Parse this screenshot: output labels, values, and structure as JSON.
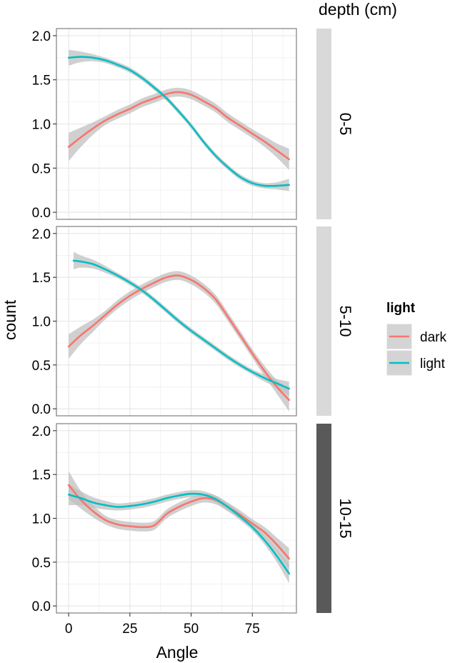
{
  "chart_data": {
    "type": "line",
    "xlabel": "Angle",
    "ylabel": "count",
    "xlim": [
      -5,
      93
    ],
    "ylim": [
      -0.08,
      2.08
    ],
    "x_ticks": [
      0,
      25,
      50,
      75
    ],
    "x_tick_labels": [
      "0",
      "25",
      "50",
      "75"
    ],
    "y_ticks": [
      0.0,
      0.5,
      1.0,
      1.5,
      2.0
    ],
    "y_tick_labels": [
      "0.0",
      "0.5",
      "1.0",
      "1.5",
      "2.0"
    ],
    "grid": true,
    "legend": {
      "title": "light",
      "position": "right",
      "entries": [
        {
          "label": "dark",
          "color": "#F8766D"
        },
        {
          "label": "light",
          "color": "#00BFC4"
        }
      ]
    },
    "facet_title": "depth (cm)",
    "facet_strip_colors": [
      "#d9d9d9",
      "#d9d9d9",
      "#595959"
    ],
    "band_color": "#c0c0c0",
    "panels": [
      {
        "strip": "0-5",
        "series": [
          {
            "name": "dark",
            "color": "#F8766D",
            "x": [
              0,
              5,
              10,
              15,
              20,
              25,
              30,
              35,
              40,
              45,
              50,
              55,
              60,
              65,
              70,
              75,
              80,
              85,
              90
            ],
            "y": [
              0.74,
              0.85,
              0.95,
              1.04,
              1.11,
              1.17,
              1.24,
              1.29,
              1.34,
              1.36,
              1.33,
              1.26,
              1.18,
              1.07,
              0.98,
              0.89,
              0.8,
              0.7,
              0.6
            ],
            "band": [
              0.16,
              0.11,
              0.07,
              0.05,
              0.05,
              0.05,
              0.05,
              0.05,
              0.05,
              0.05,
              0.05,
              0.05,
              0.05,
              0.05,
              0.05,
              0.05,
              0.06,
              0.08,
              0.12
            ]
          },
          {
            "name": "light",
            "color": "#00BFC4",
            "x": [
              0,
              5,
              10,
              15,
              20,
              25,
              30,
              35,
              40,
              45,
              50,
              55,
              60,
              65,
              70,
              75,
              80,
              85,
              90
            ],
            "y": [
              1.75,
              1.76,
              1.75,
              1.72,
              1.67,
              1.61,
              1.52,
              1.41,
              1.29,
              1.14,
              0.98,
              0.8,
              0.64,
              0.51,
              0.4,
              0.33,
              0.3,
              0.3,
              0.31
            ],
            "band": [
              0.09,
              0.06,
              0.04,
              0.03,
              0.03,
              0.03,
              0.03,
              0.03,
              0.03,
              0.03,
              0.03,
              0.03,
              0.03,
              0.03,
              0.03,
              0.03,
              0.03,
              0.04,
              0.07
            ]
          }
        ]
      },
      {
        "strip": "5-10",
        "series": [
          {
            "name": "dark",
            "color": "#F8766D",
            "x": [
              0,
              5,
              10,
              15,
              20,
              25,
              30,
              35,
              40,
              45,
              50,
              55,
              60,
              65,
              70,
              75,
              80,
              85,
              90
            ],
            "y": [
              0.71,
              0.84,
              0.95,
              1.07,
              1.19,
              1.29,
              1.37,
              1.44,
              1.5,
              1.52,
              1.47,
              1.38,
              1.25,
              1.05,
              0.84,
              0.63,
              0.43,
              0.25,
              0.1
            ],
            "band": [
              0.14,
              0.1,
              0.07,
              0.05,
              0.05,
              0.05,
              0.05,
              0.05,
              0.05,
              0.05,
              0.05,
              0.05,
              0.05,
              0.05,
              0.05,
              0.05,
              0.06,
              0.08,
              0.13
            ]
          },
          {
            "name": "light",
            "color": "#00BFC4",
            "x": [
              2,
              5,
              10,
              15,
              20,
              25,
              30,
              35,
              40,
              45,
              50,
              55,
              60,
              65,
              70,
              75,
              80,
              85,
              90
            ],
            "y": [
              1.69,
              1.68,
              1.65,
              1.59,
              1.52,
              1.44,
              1.35,
              1.24,
              1.12,
              1.0,
              0.89,
              0.79,
              0.69,
              0.59,
              0.5,
              0.42,
              0.35,
              0.29,
              0.23
            ],
            "band": [
              0.1,
              0.07,
              0.05,
              0.04,
              0.03,
              0.03,
              0.03,
              0.03,
              0.03,
              0.03,
              0.03,
              0.03,
              0.03,
              0.03,
              0.03,
              0.03,
              0.04,
              0.05,
              0.08
            ]
          }
        ]
      },
      {
        "strip": "10-15",
        "series": [
          {
            "name": "dark",
            "color": "#F8766D",
            "x": [
              0,
              5,
              10,
              15,
              20,
              25,
              30,
              35,
              40,
              45,
              50,
              55,
              60,
              65,
              70,
              75,
              80,
              85,
              90
            ],
            "y": [
              1.38,
              1.21,
              1.08,
              0.98,
              0.93,
              0.91,
              0.9,
              0.92,
              1.05,
              1.13,
              1.19,
              1.23,
              1.21,
              1.13,
              1.04,
              0.94,
              0.84,
              0.7,
              0.54
            ],
            "band": [
              0.16,
              0.1,
              0.07,
              0.05,
              0.05,
              0.05,
              0.05,
              0.05,
              0.05,
              0.05,
              0.05,
              0.05,
              0.05,
              0.05,
              0.05,
              0.05,
              0.06,
              0.08,
              0.12
            ]
          },
          {
            "name": "light",
            "color": "#00BFC4",
            "x": [
              0,
              5,
              10,
              15,
              20,
              25,
              30,
              35,
              40,
              45,
              50,
              55,
              60,
              65,
              70,
              75,
              80,
              85,
              90
            ],
            "y": [
              1.27,
              1.23,
              1.18,
              1.15,
              1.13,
              1.14,
              1.16,
              1.19,
              1.23,
              1.26,
              1.28,
              1.27,
              1.22,
              1.13,
              1.02,
              0.9,
              0.75,
              0.57,
              0.37
            ],
            "band": [
              0.12,
              0.08,
              0.06,
              0.05,
              0.04,
              0.04,
              0.04,
              0.04,
              0.04,
              0.04,
              0.04,
              0.04,
              0.04,
              0.04,
              0.04,
              0.04,
              0.05,
              0.07,
              0.11
            ]
          }
        ]
      }
    ]
  }
}
